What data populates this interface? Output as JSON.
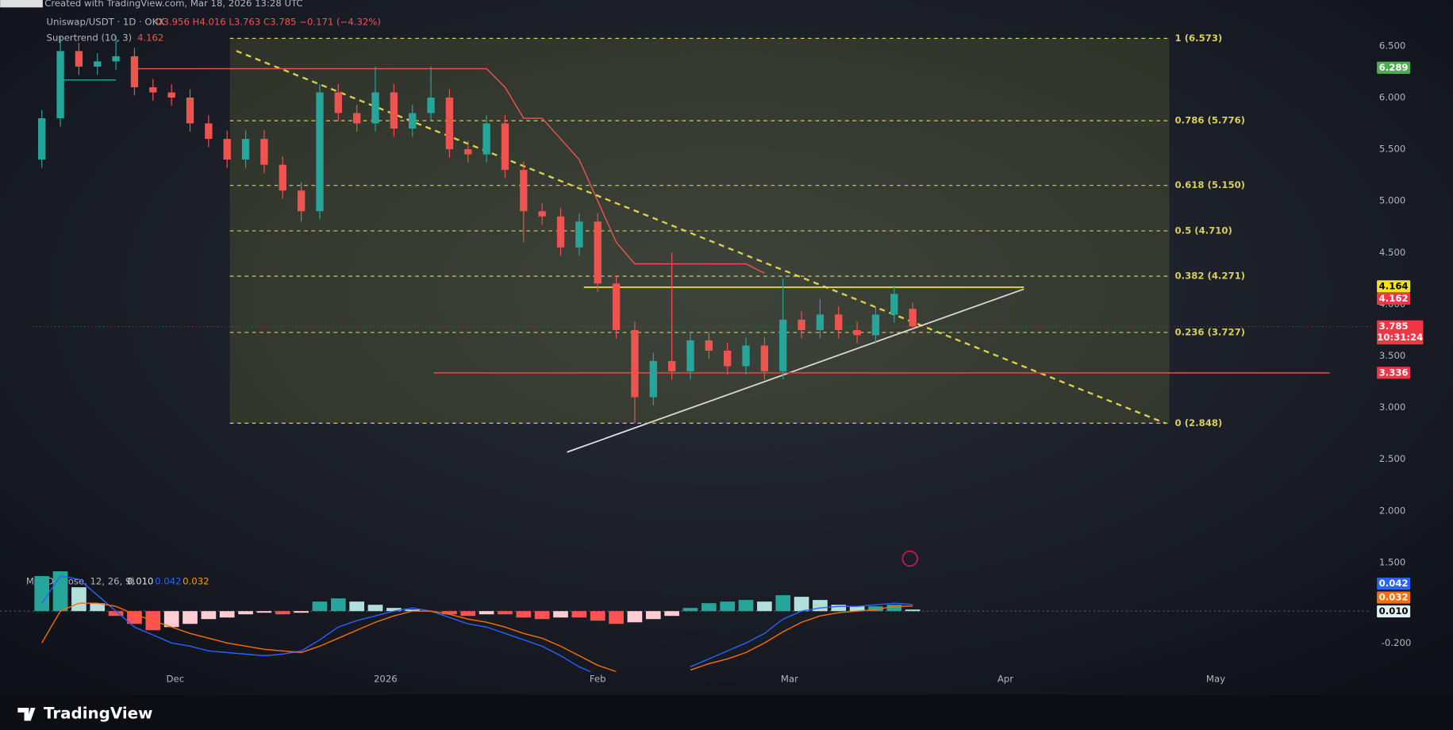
{
  "header": {
    "source": "Created with TradingView.com, Mar 18, 2026 13:28 UTC",
    "symbol": "Uniswap/USDT · 1D · OKX",
    "ohlc": "O3.956 H4.016 L3.763 C3.785 −0.171 (−4.32%)",
    "supertrend": "Supertrend (10, 3)",
    "supertrend_value": 4.162
  },
  "chart_data": {
    "type": "candlestick",
    "up_color": "#26a69a",
    "down_color": "#ef5350",
    "candles": [
      [
        5.4,
        5.88,
        5.32,
        5.8
      ],
      [
        5.8,
        6.6,
        5.72,
        6.45
      ],
      [
        6.45,
        6.53,
        6.22,
        6.3
      ],
      [
        6.3,
        6.43,
        6.22,
        6.35
      ],
      [
        6.35,
        6.6,
        6.27,
        6.4
      ],
      [
        6.4,
        6.48,
        6.02,
        6.1
      ],
      [
        6.1,
        6.18,
        5.97,
        6.05
      ],
      [
        6.05,
        6.13,
        5.92,
        6.0
      ],
      [
        6.0,
        6.08,
        5.67,
        5.75
      ],
      [
        5.75,
        5.83,
        5.52,
        5.6
      ],
      [
        5.6,
        5.68,
        5.32,
        5.4
      ],
      [
        5.4,
        5.68,
        5.32,
        5.6
      ],
      [
        5.6,
        5.68,
        5.27,
        5.35
      ],
      [
        5.35,
        5.43,
        5.02,
        5.1
      ],
      [
        5.1,
        5.18,
        4.8,
        4.9
      ],
      [
        4.9,
        6.13,
        4.82,
        6.05
      ],
      [
        6.05,
        6.13,
        5.77,
        5.85
      ],
      [
        5.85,
        5.93,
        5.67,
        5.75
      ],
      [
        5.75,
        6.3,
        5.67,
        6.05
      ],
      [
        6.05,
        6.13,
        5.62,
        5.7
      ],
      [
        5.7,
        5.93,
        5.62,
        5.85
      ],
      [
        5.85,
        6.3,
        5.77,
        6.0
      ],
      [
        6.0,
        6.08,
        5.42,
        5.5
      ],
      [
        5.5,
        5.58,
        5.37,
        5.45
      ],
      [
        5.45,
        5.83,
        5.37,
        5.75
      ],
      [
        5.75,
        5.83,
        5.22,
        5.3
      ],
      [
        5.3,
        5.38,
        4.6,
        4.9
      ],
      [
        4.9,
        4.98,
        4.77,
        4.85
      ],
      [
        4.85,
        4.93,
        4.47,
        4.55
      ],
      [
        4.55,
        4.88,
        4.47,
        4.8
      ],
      [
        4.8,
        4.88,
        4.12,
        4.2
      ],
      [
        4.2,
        4.28,
        3.67,
        3.75
      ],
      [
        3.75,
        3.83,
        2.85,
        3.1
      ],
      [
        3.1,
        3.53,
        3.02,
        3.45
      ],
      [
        3.45,
        4.5,
        3.27,
        3.35
      ],
      [
        3.35,
        3.73,
        3.27,
        3.65
      ],
      [
        3.65,
        3.73,
        3.47,
        3.55
      ],
      [
        3.55,
        3.63,
        3.32,
        3.4
      ],
      [
        3.4,
        3.68,
        3.32,
        3.6
      ],
      [
        3.6,
        3.68,
        3.27,
        3.35
      ],
      [
        3.35,
        4.25,
        3.27,
        3.85
      ],
      [
        3.85,
        3.93,
        3.67,
        3.75
      ],
      [
        3.75,
        4.05,
        3.67,
        3.9
      ],
      [
        3.9,
        3.98,
        3.67,
        3.75
      ],
      [
        3.75,
        3.83,
        3.62,
        3.7
      ],
      [
        3.7,
        3.98,
        3.62,
        3.9
      ],
      [
        3.9,
        4.18,
        3.82,
        4.1
      ],
      [
        3.956,
        4.016,
        3.763,
        3.785
      ]
    ],
    "supertrend_up": [
      null,
      6.17,
      6.17,
      6.17,
      6.17,
      null,
      null,
      null,
      null,
      null,
      null,
      null,
      null,
      null,
      null,
      null,
      null,
      null,
      null,
      null,
      null,
      null,
      null,
      null,
      null,
      null,
      null,
      null,
      null,
      null,
      null,
      null,
      null,
      null,
      null,
      null,
      null,
      null,
      null,
      null,
      null,
      null,
      null,
      null,
      null,
      null,
      null,
      null
    ],
    "supertrend_down": [
      null,
      null,
      null,
      null,
      null,
      6.28,
      6.28,
      6.28,
      6.28,
      6.28,
      6.28,
      6.28,
      6.28,
      6.28,
      6.28,
      6.28,
      6.28,
      6.28,
      6.28,
      6.28,
      6.28,
      6.28,
      6.28,
      6.28,
      6.28,
      6.1,
      5.8,
      5.8,
      5.6,
      5.4,
      5.0,
      4.6,
      4.39,
      4.39,
      4.39,
      4.39,
      4.39,
      4.39,
      4.39,
      4.3,
      null,
      null,
      null,
      null,
      null,
      null,
      null,
      null
    ],
    "ylim": [
      1.43,
      6.81
    ],
    "yticks": [
      {
        "value": 6.5,
        "label": "6.500"
      },
      {
        "value": 6.0,
        "label": "6.000"
      },
      {
        "value": 5.5,
        "label": "5.500"
      },
      {
        "value": 5.0,
        "label": "5.000"
      },
      {
        "value": 4.5,
        "label": "4.500"
      },
      {
        "value": 4.0,
        "label": "4.000"
      },
      {
        "value": 3.5,
        "label": "3.500"
      },
      {
        "value": 3.0,
        "label": "3.000"
      },
      {
        "value": 2.5,
        "label": "2.500"
      },
      {
        "value": 2.0,
        "label": "2.000"
      },
      {
        "value": 1.5,
        "label": "1.500"
      }
    ],
    "xlabels": [
      "Dec",
      "2026",
      "Feb",
      "Mar",
      "Apr",
      "May"
    ],
    "fib": [
      {
        "label": "1 (6.573)",
        "value": 6.573
      },
      {
        "label": "0.786 (5.776)",
        "value": 5.776
      },
      {
        "label": "0.618 (5.150)",
        "value": 5.15
      },
      {
        "label": "0.5 (4.710)",
        "value": 4.71
      },
      {
        "label": "0.382 (4.271)",
        "value": 4.271
      },
      {
        "label": "0.236 (3.727)",
        "value": 3.727
      },
      {
        "label": "0 (2.848)",
        "value": 2.848
      }
    ],
    "price_tags": [
      {
        "value": 6.289,
        "color": "#4caf50"
      },
      {
        "value": 4.164,
        "color": "#f5e50a"
      },
      {
        "value": 4.162,
        "color": "#f23645"
      },
      {
        "value": 3.785,
        "color": "#f23645"
      },
      {
        "value": 3.336,
        "color": "#f23645"
      }
    ],
    "countdown": "10:31:24"
  },
  "macd": {
    "title": "MACD (close, 12, 26, 9)",
    "hist_value": {
      "value": 0.01,
      "label": "0.010"
    },
    "macd_value": 0.042,
    "signal_value": 0.032,
    "ylim": [
      -0.38,
      0.26
    ],
    "yticks": [
      {
        "value": -0.2,
        "label": "-0.200"
      }
    ],
    "histogram": [
      0.22,
      0.25,
      0.15,
      0.05,
      -0.03,
      -0.08,
      -0.12,
      -0.1,
      -0.08,
      -0.05,
      -0.04,
      -0.02,
      -0.01,
      -0.02,
      -0.01,
      0.06,
      0.08,
      0.06,
      0.04,
      0.02,
      0.01,
      0.0,
      -0.02,
      -0.03,
      -0.02,
      -0.02,
      -0.04,
      -0.05,
      -0.04,
      -0.04,
      -0.06,
      -0.08,
      -0.07,
      -0.05,
      -0.03,
      0.02,
      0.05,
      0.06,
      0.07,
      0.06,
      0.1,
      0.09,
      0.07,
      0.04,
      0.03,
      0.03,
      0.04,
      0.01
    ],
    "macd": [
      0.05,
      0.22,
      0.2,
      0.1,
      0.0,
      -0.1,
      -0.15,
      -0.2,
      -0.22,
      -0.25,
      -0.26,
      -0.27,
      -0.28,
      -0.27,
      -0.25,
      -0.18,
      -0.1,
      -0.06,
      -0.03,
      0.0,
      0.02,
      0.0,
      -0.04,
      -0.08,
      -0.1,
      -0.14,
      -0.18,
      -0.22,
      -0.28,
      -0.35,
      -0.4,
      null,
      null,
      null,
      null,
      -0.35,
      -0.3,
      -0.25,
      -0.2,
      -0.14,
      -0.05,
      0.0,
      0.02,
      0.03,
      0.03,
      0.04,
      0.05,
      0.042
    ],
    "signal": [
      -0.2,
      0.0,
      0.05,
      0.05,
      0.03,
      -0.02,
      -0.06,
      -0.1,
      -0.14,
      -0.17,
      -0.2,
      -0.22,
      -0.24,
      -0.25,
      -0.26,
      -0.22,
      -0.17,
      -0.12,
      -0.07,
      -0.03,
      0.0,
      0.0,
      -0.02,
      -0.05,
      -0.07,
      -0.1,
      -0.14,
      -0.17,
      -0.22,
      -0.28,
      -0.34,
      -0.38,
      null,
      null,
      null,
      -0.37,
      -0.33,
      -0.3,
      -0.26,
      -0.2,
      -0.13,
      -0.07,
      -0.03,
      -0.01,
      0.0,
      0.01,
      0.03,
      0.032
    ]
  },
  "footer": {
    "brand": "TradingView"
  }
}
